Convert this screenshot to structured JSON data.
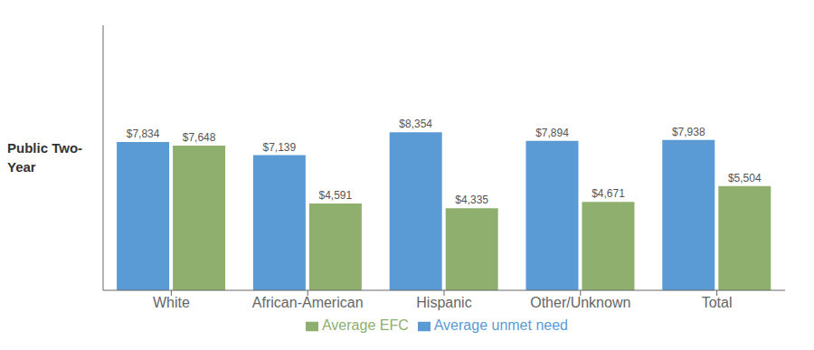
{
  "chart_data": {
    "type": "bar",
    "categories": [
      "White",
      "African-American",
      "Hispanic",
      "Other/Unknown",
      "Total"
    ],
    "series": [
      {
        "name": "Average unmet need",
        "color": "#5B9BD5",
        "values": [
          7834,
          7139,
          8354,
          7894,
          7938
        ],
        "value_labels": [
          "$7,834",
          "$7,139",
          "$8,354",
          "$7,894",
          "$7,938"
        ]
      },
      {
        "name": "Average EFC",
        "color": "#8FAF6E",
        "values": [
          7648,
          4591,
          4335,
          4671,
          5504
        ],
        "value_labels": [
          "$7,648",
          "$4,591",
          "$4,335",
          "$4,671",
          "$5,504"
        ]
      }
    ],
    "ylabel": "Public Two-\nYear",
    "ylim": [
      0,
      14000
    ],
    "data_labels": true,
    "tick_labels": "x",
    "legend": "bottom",
    "grid": false
  }
}
